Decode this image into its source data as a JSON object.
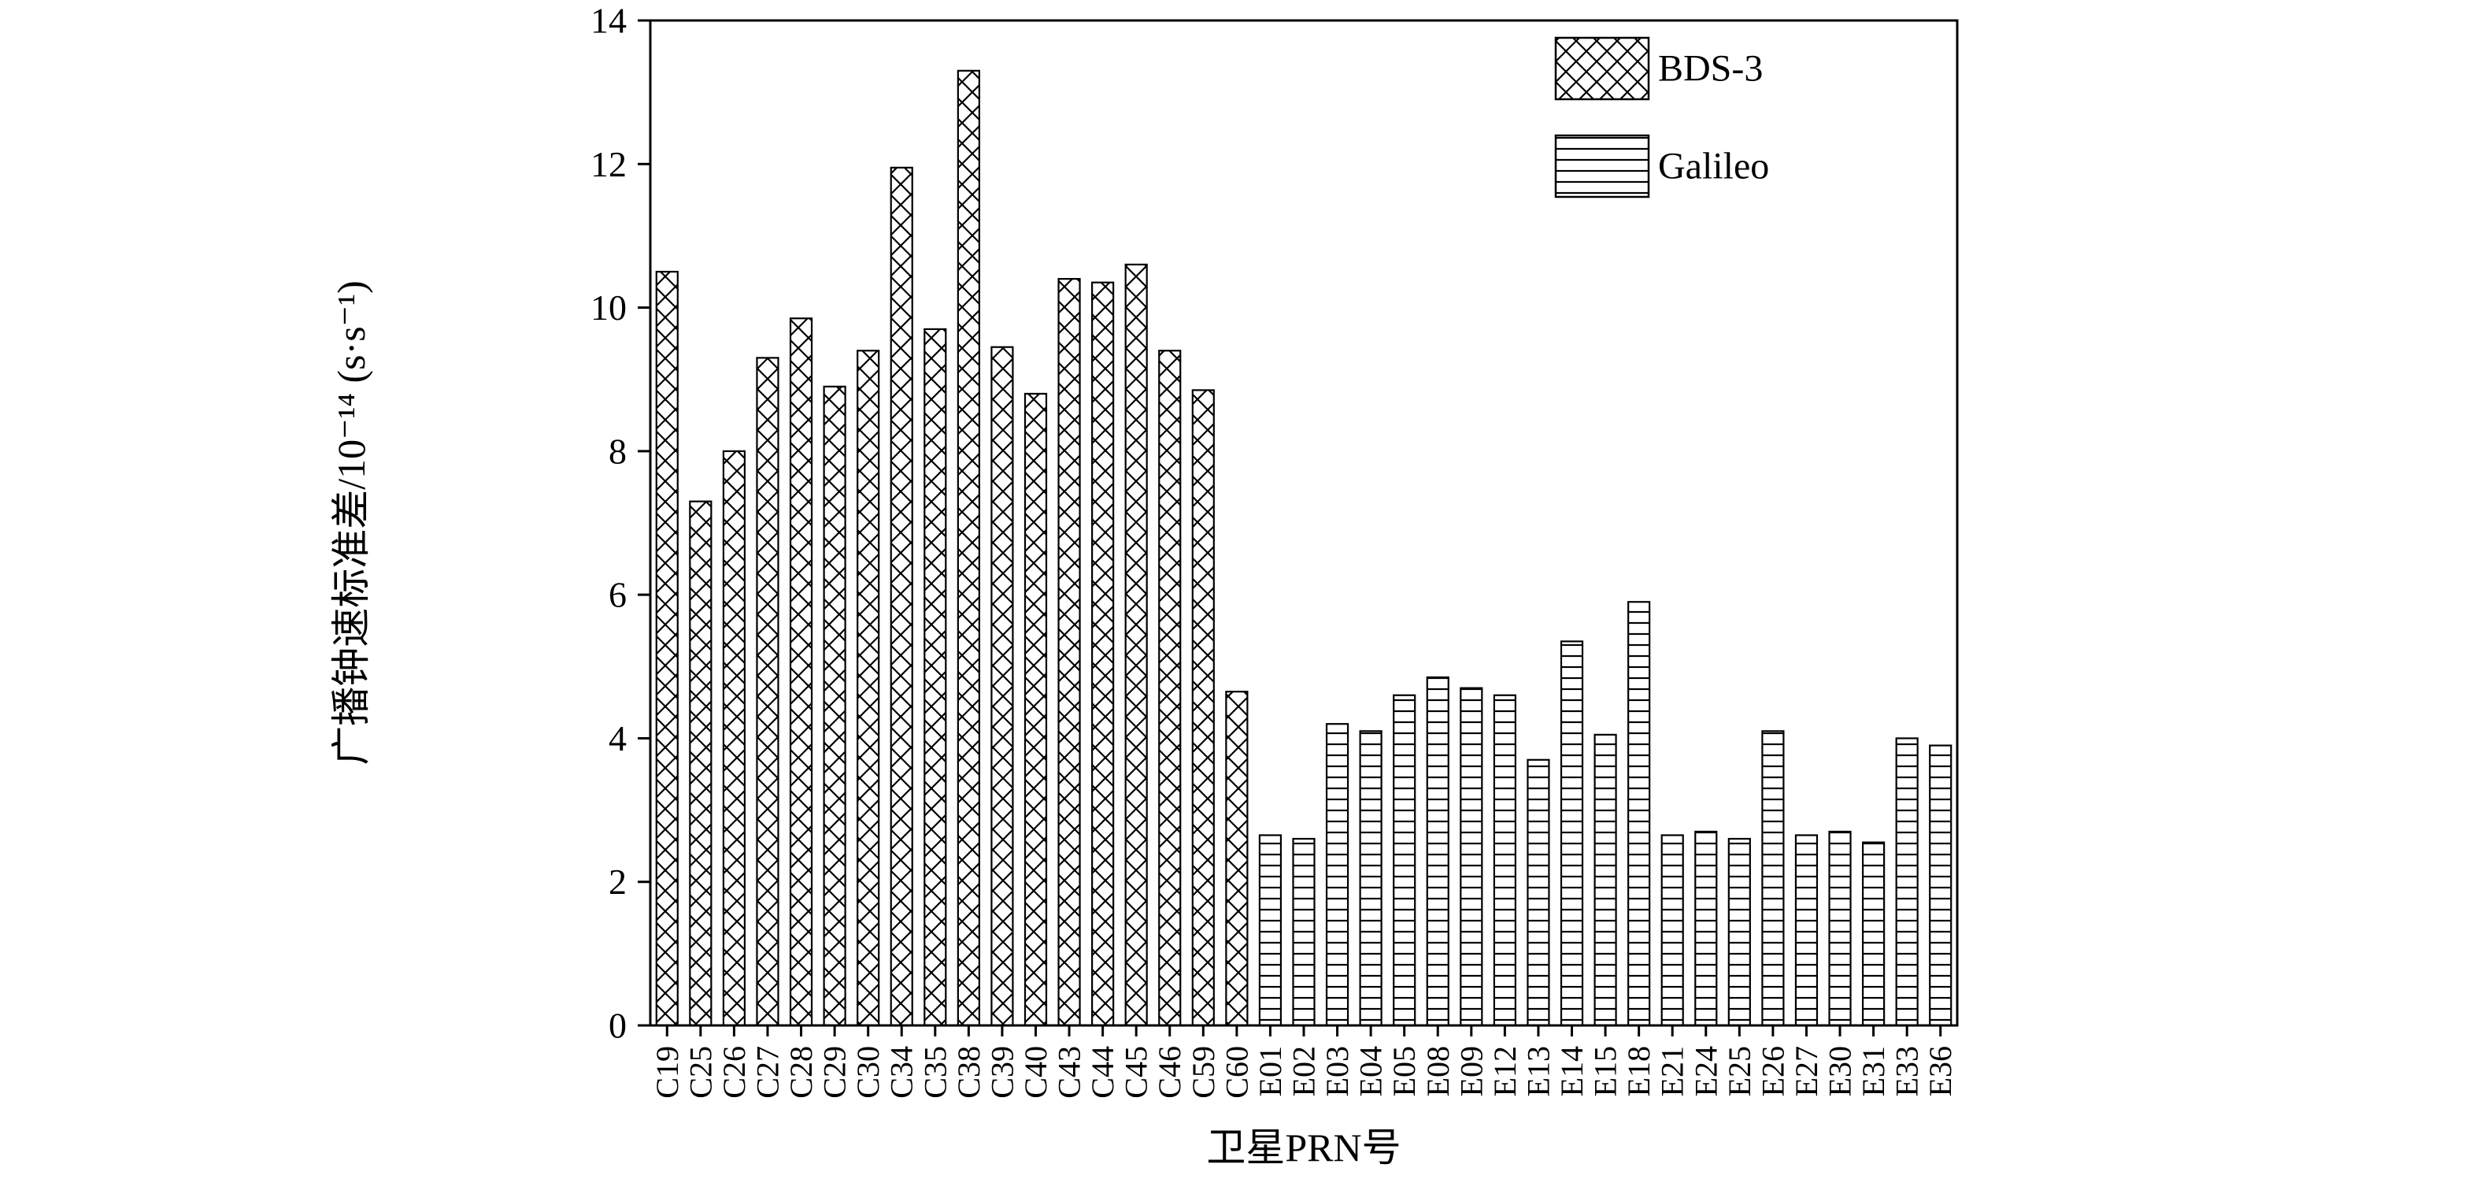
{
  "figure": {
    "background": "#ffffff",
    "ink_color": "#000000"
  },
  "chart_data": {
    "type": "bar",
    "title": "",
    "xlabel": "卫星PRN号",
    "ylabel": "广播钟速标准差/10⁻¹⁴ (s·s⁻¹)",
    "ylim": [
      0,
      14
    ],
    "ytick_step": 2,
    "ytick_labels": [
      "0",
      "2",
      "4",
      "6",
      "8",
      "10",
      "12",
      "14"
    ],
    "grid": false,
    "legend_position": "top-right",
    "legend": [
      {
        "name": "BDS-3",
        "pattern": "crosshatch"
      },
      {
        "name": "Galileo",
        "pattern": "hlines"
      }
    ],
    "bars": [
      {
        "label": "C19",
        "value": 10.5,
        "series": "BDS-3"
      },
      {
        "label": "C25",
        "value": 7.3,
        "series": "BDS-3"
      },
      {
        "label": "C26",
        "value": 8.0,
        "series": "BDS-3"
      },
      {
        "label": "C27",
        "value": 9.3,
        "series": "BDS-3"
      },
      {
        "label": "C28",
        "value": 9.85,
        "series": "BDS-3"
      },
      {
        "label": "C29",
        "value": 8.9,
        "series": "BDS-3"
      },
      {
        "label": "C30",
        "value": 9.4,
        "series": "BDS-3"
      },
      {
        "label": "C34",
        "value": 11.95,
        "series": "BDS-3"
      },
      {
        "label": "C35",
        "value": 9.7,
        "series": "BDS-3"
      },
      {
        "label": "C38",
        "value": 13.3,
        "series": "BDS-3"
      },
      {
        "label": "C39",
        "value": 9.45,
        "series": "BDS-3"
      },
      {
        "label": "C40",
        "value": 8.8,
        "series": "BDS-3"
      },
      {
        "label": "C43",
        "value": 10.4,
        "series": "BDS-3"
      },
      {
        "label": "C44",
        "value": 10.35,
        "series": "BDS-3"
      },
      {
        "label": "C45",
        "value": 10.6,
        "series": "BDS-3"
      },
      {
        "label": "C46",
        "value": 9.4,
        "series": "BDS-3"
      },
      {
        "label": "C59",
        "value": 8.85,
        "series": "BDS-3"
      },
      {
        "label": "C60",
        "value": 4.65,
        "series": "BDS-3"
      },
      {
        "label": "E01",
        "value": 2.65,
        "series": "Galileo"
      },
      {
        "label": "E02",
        "value": 2.6,
        "series": "Galileo"
      },
      {
        "label": "E03",
        "value": 4.2,
        "series": "Galileo"
      },
      {
        "label": "E04",
        "value": 4.1,
        "series": "Galileo"
      },
      {
        "label": "E05",
        "value": 4.6,
        "series": "Galileo"
      },
      {
        "label": "E08",
        "value": 4.85,
        "series": "Galileo"
      },
      {
        "label": "E09",
        "value": 4.7,
        "series": "Galileo"
      },
      {
        "label": "E12",
        "value": 4.6,
        "series": "Galileo"
      },
      {
        "label": "E13",
        "value": 3.7,
        "series": "Galileo"
      },
      {
        "label": "E14",
        "value": 5.35,
        "series": "Galileo"
      },
      {
        "label": "E15",
        "value": 4.05,
        "series": "Galileo"
      },
      {
        "label": "E18",
        "value": 5.9,
        "series": "Galileo"
      },
      {
        "label": "E21",
        "value": 2.65,
        "series": "Galileo"
      },
      {
        "label": "E24",
        "value": 2.7,
        "series": "Galileo"
      },
      {
        "label": "E25",
        "value": 2.6,
        "series": "Galileo"
      },
      {
        "label": "E26",
        "value": 4.1,
        "series": "Galileo"
      },
      {
        "label": "E27",
        "value": 2.65,
        "series": "Galileo"
      },
      {
        "label": "E30",
        "value": 2.7,
        "series": "Galileo"
      },
      {
        "label": "E31",
        "value": 2.55,
        "series": "Galileo"
      },
      {
        "label": "E33",
        "value": 4.0,
        "series": "Galileo"
      },
      {
        "label": "E36",
        "value": 3.9,
        "series": "Galileo"
      }
    ]
  }
}
